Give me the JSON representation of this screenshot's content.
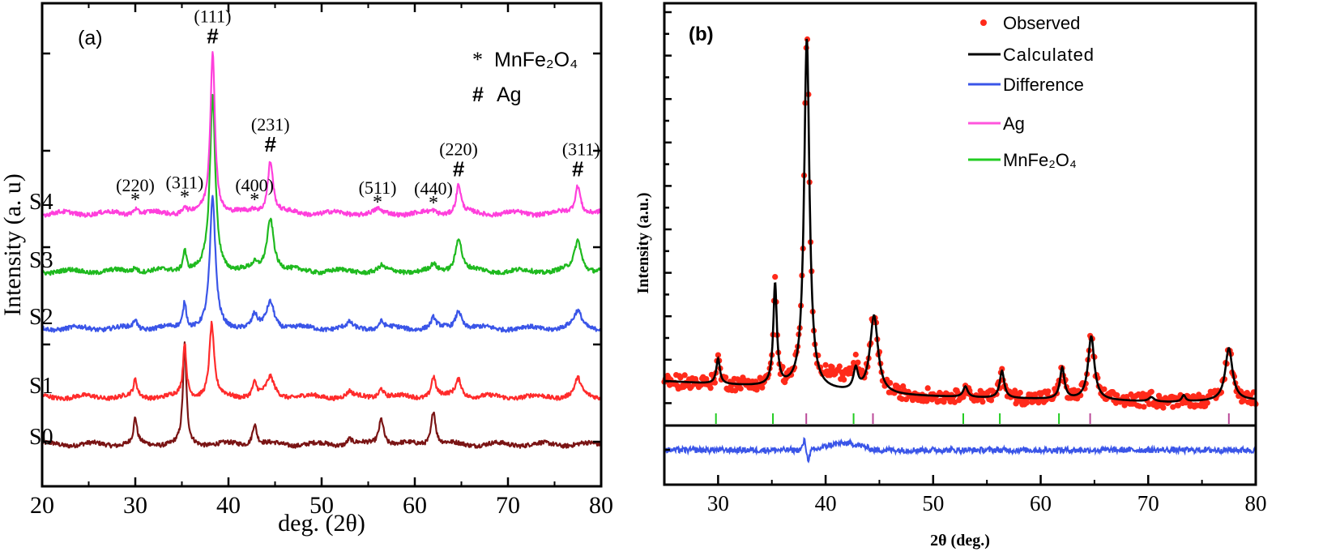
{
  "chart_data": [
    {
      "panel_label": "(a)",
      "type": "line",
      "xlabel": "deg. (2θ)",
      "ylabel": "Intensity (a. u)",
      "xlim": [
        20,
        80
      ],
      "ylim": [
        0,
        100
      ],
      "x_ticks": [
        "20",
        "30",
        "40",
        "50",
        "60",
        "70",
        "80"
      ],
      "grid": false,
      "legend_position": "top-right",
      "legend": [
        {
          "symbol": "*",
          "label": "MnFe₂O₄"
        },
        {
          "symbol": "#",
          "label": "Ag"
        }
      ],
      "series": [
        {
          "name": "S0",
          "color": "#7a1414",
          "baseline": 8.7,
          "peaks": [
            [
              30,
              5.2,
              0.22
            ],
            [
              35.3,
              20.6,
              0.22
            ],
            [
              42.8,
              4.4,
              0.28
            ],
            [
              53,
              1.2,
              0.3
            ],
            [
              56.4,
              5.5,
              0.32
            ],
            [
              62,
              7.2,
              0.28
            ]
          ]
        },
        {
          "name": "S1",
          "color": "#ff2b2b",
          "baseline": 18.5,
          "peaks": [
            [
              30,
              3.4,
              0.22
            ],
            [
              35.3,
              11,
              0.22
            ],
            [
              38.2,
              15,
              0.3
            ],
            [
              42.8,
              2.8,
              0.28
            ],
            [
              44.5,
              3.9,
              0.5
            ],
            [
              53,
              1,
              0.3
            ],
            [
              56.4,
              2,
              0.32
            ],
            [
              62,
              4.2,
              0.28
            ],
            [
              64.7,
              3.7,
              0.4
            ],
            [
              77.5,
              3.7,
              0.4
            ]
          ]
        },
        {
          "name": "S2",
          "color": "#3a55e8",
          "baseline": 32.7,
          "peaks": [
            [
              30,
              2,
              0.22
            ],
            [
              35.3,
              5.5,
              0.22
            ],
            [
              38.3,
              27,
              0.35
            ],
            [
              42.8,
              2.5,
              0.28
            ],
            [
              44.5,
              5.5,
              0.5
            ],
            [
              53,
              1,
              0.3
            ],
            [
              56.4,
              1.5,
              0.32
            ],
            [
              62,
              2,
              0.28
            ],
            [
              64.7,
              3.9,
              0.4
            ],
            [
              77.5,
              3.4,
              0.5
            ]
          ]
        },
        {
          "name": "S3",
          "color": "#1fba1f",
          "baseline": 44.5,
          "peaks": [
            [
              30,
              1,
              0.3
            ],
            [
              35.3,
              4.5,
              0.22
            ],
            [
              38.3,
              36,
              0.35
            ],
            [
              42.8,
              1,
              0.3
            ],
            [
              44.5,
              11,
              0.45
            ],
            [
              56.4,
              1,
              0.3
            ],
            [
              62,
              1.2,
              0.3
            ],
            [
              64.7,
              7.2,
              0.4
            ],
            [
              77.5,
              6.4,
              0.45
            ]
          ]
        },
        {
          "name": "S4",
          "color": "#ff3fdc",
          "baseline": 56.5,
          "peaks": [
            [
              30,
              1.2,
              0.3
            ],
            [
              35.3,
              1.5,
              0.22
            ],
            [
              38.3,
              33.5,
              0.3
            ],
            [
              42.8,
              0.6,
              0.3
            ],
            [
              44.5,
              11,
              0.35
            ],
            [
              56,
              0.7,
              0.3
            ],
            [
              62,
              0.5,
              0.3
            ],
            [
              64.7,
              6,
              0.3
            ],
            [
              77.5,
              6,
              0.35
            ]
          ]
        }
      ],
      "annotations": [
        {
          "x": 30,
          "hkl": "(220)",
          "symbol": "*"
        },
        {
          "x": 35.3,
          "hkl": "(311)",
          "symbol": "*"
        },
        {
          "x": 38.3,
          "hkl": "(111)",
          "symbol": "#"
        },
        {
          "x": 42.8,
          "hkl": "(400)",
          "symbol": "*"
        },
        {
          "x": 44.5,
          "hkl": "(231)",
          "symbol": "#"
        },
        {
          "x": 56,
          "hkl": "(511)",
          "symbol": "*"
        },
        {
          "x": 62,
          "hkl": "(440)",
          "symbol": "*"
        },
        {
          "x": 64.7,
          "hkl": "(220)",
          "symbol": "#"
        },
        {
          "x": 77.5,
          "hkl": "(311)",
          "symbol": "#"
        }
      ]
    },
    {
      "panel_label": "(b)",
      "type": "scatter+line",
      "xlabel": "2θ (deg.)",
      "ylabel": "Intensity (a.u.)",
      "xlim": [
        25,
        80
      ],
      "ylim": [
        -14,
        100
      ],
      "x_ticks": [
        "30",
        "40",
        "50",
        "60",
        "70",
        "80"
      ],
      "grid": false,
      "legend_position": "top-right",
      "legend": [
        {
          "label": "Observed",
          "color": "#ff2a1a",
          "kind": "dot"
        },
        {
          "label": "Calculated",
          "color": "#000000",
          "kind": "line"
        },
        {
          "label": "Difference",
          "color": "#3a55e8",
          "kind": "line"
        },
        {
          "label": "Ag",
          "color": "#ff55dd",
          "kind": "line"
        },
        {
          "label": "MnFe₂O₄",
          "color": "#22cc22",
          "kind": "line"
        }
      ],
      "background": [
        [
          25,
          10.5
        ],
        [
          35,
          9
        ],
        [
          45,
          7.2
        ],
        [
          55,
          6.5
        ],
        [
          65,
          6
        ],
        [
          72,
          5.5
        ],
        [
          80,
          6
        ]
      ],
      "peaks": [
        [
          30,
          6,
          0.2
        ],
        [
          35.3,
          24,
          0.2
        ],
        [
          38.25,
          83,
          0.3
        ],
        [
          42.8,
          5,
          0.25
        ],
        [
          44.5,
          18.5,
          0.45
        ],
        [
          53,
          2.5,
          0.25
        ],
        [
          56.4,
          6.4,
          0.25
        ],
        [
          62,
          7.4,
          0.25
        ],
        [
          64.7,
          15,
          0.35
        ],
        [
          70.3,
          1,
          0.3
        ],
        [
          73.3,
          1.5,
          0.2
        ],
        [
          77.5,
          12.5,
          0.4
        ]
      ],
      "bragg_positions": {
        "MnFe₂O₄": [
          29.8,
          35.1,
          42.6,
          52.8,
          56.2,
          61.7
        ],
        "Ag": [
          38.2,
          44.4,
          64.6,
          77.5
        ]
      }
    }
  ]
}
